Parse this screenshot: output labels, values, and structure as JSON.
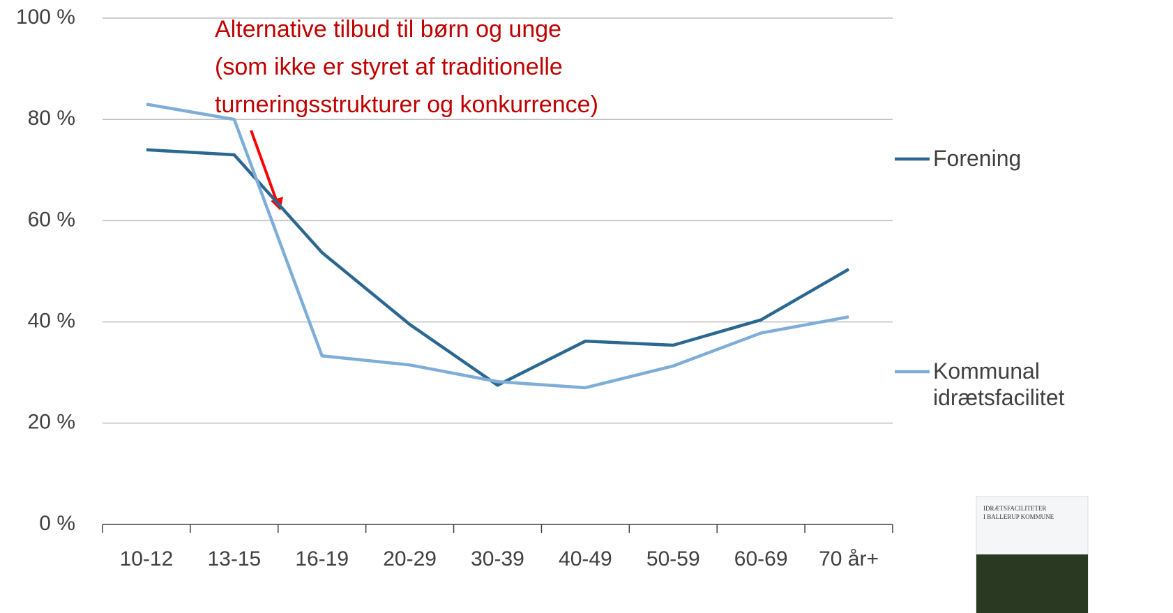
{
  "chart_data": {
    "type": "line",
    "categories": [
      "10-12",
      "13-15",
      "16-19",
      "20-29",
      "30-39",
      "40-49",
      "50-59",
      "60-69",
      "70 år+"
    ],
    "series": [
      {
        "name": "Forening",
        "color": "#2b6891",
        "values": [
          74,
          73,
          53.7,
          39.5,
          27.5,
          36.2,
          35.4,
          40.4,
          50.4
        ]
      },
      {
        "name": "Kommunal idrætsfacilitet",
        "color": "#7eadd8",
        "values": [
          83,
          80,
          33.3,
          31.5,
          28.2,
          27,
          31.3,
          37.8,
          41
        ]
      }
    ],
    "ylim": [
      0,
      100
    ],
    "yticks": [
      {
        "value": 0,
        "label": "0 %"
      },
      {
        "value": 20,
        "label": "20 %"
      },
      {
        "value": 40,
        "label": "40 %"
      },
      {
        "value": 60,
        "label": "60 %"
      },
      {
        "value": 80,
        "label": "80 %"
      },
      {
        "value": 100,
        "label": "100 %"
      }
    ],
    "grid": true,
    "legend": "right",
    "annotation": {
      "lines": [
        "Alternative tilbud til børn og unge",
        "(som ikke er styret af traditionelle",
        "turneringsstrukturer og konkurrence)"
      ],
      "color": "#c00000"
    }
  },
  "thumbnail": {
    "title": [
      "IDRÆTSFACILITETER",
      "I BALLERUP KOMMUNE"
    ]
  }
}
